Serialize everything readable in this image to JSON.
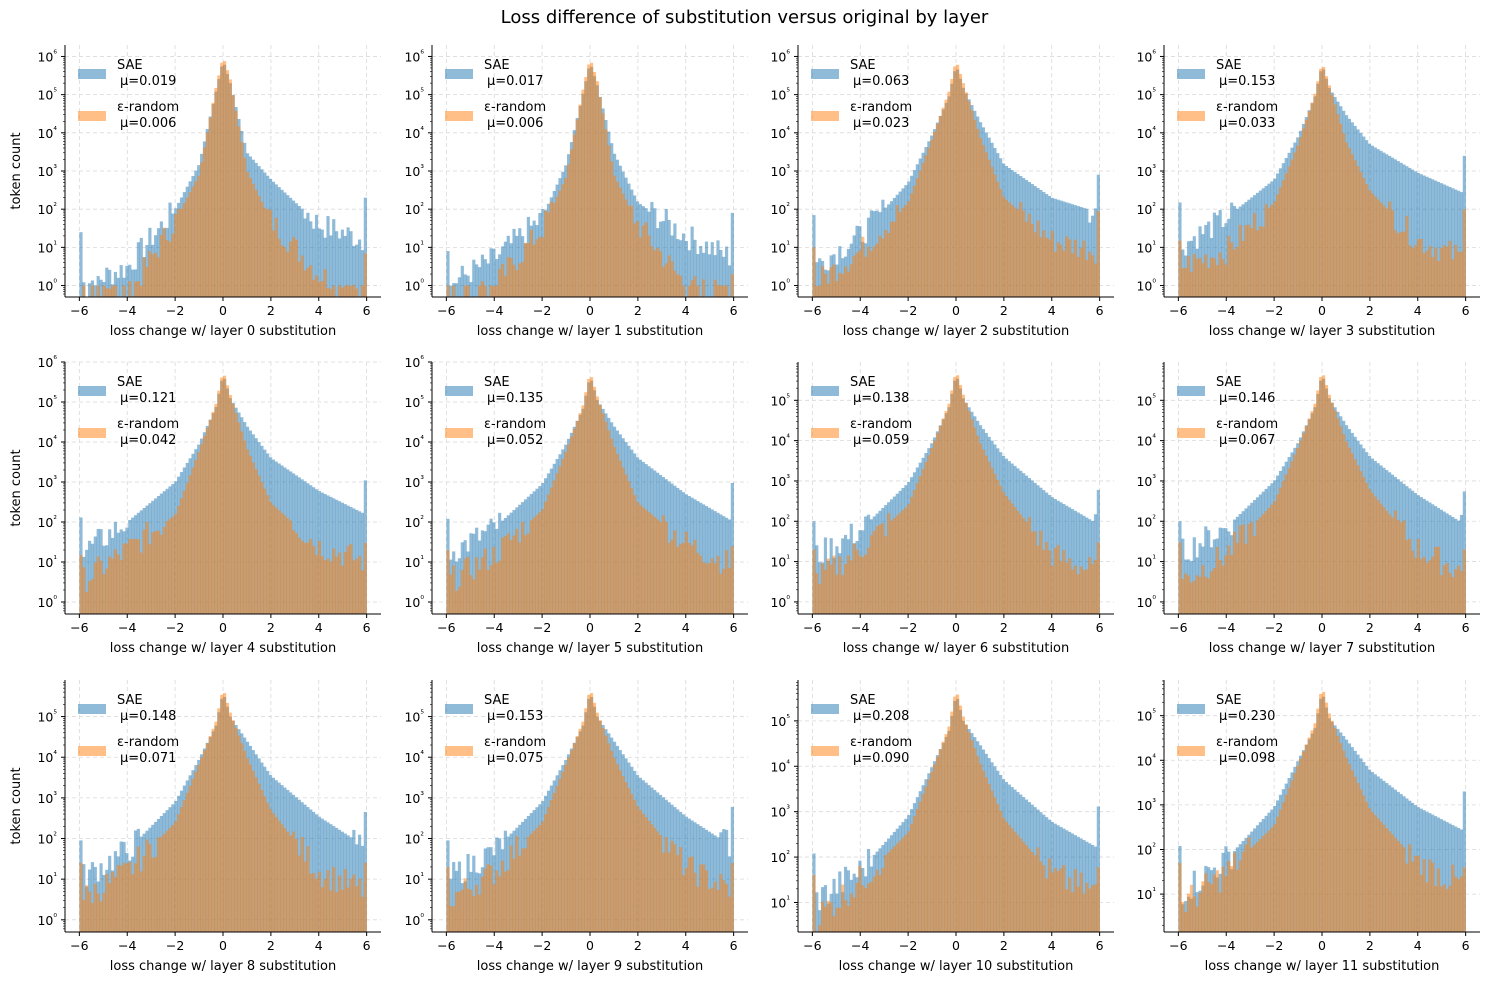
{
  "figure": {
    "title": "Loss difference of substitution versus original by layer"
  },
  "chart_data": {
    "type": "bar",
    "subtype": "overlaid-histogram-grid",
    "title": "Loss difference of substitution versus original by layer",
    "layout": {
      "rows": 3,
      "cols": 4
    },
    "ylabel": "token count",
    "yscale": "log",
    "grid": true,
    "grid_style": "dashed",
    "legend_position": "top-left",
    "bins": {
      "min": -6,
      "max": 6,
      "count": 100
    },
    "xlim": [
      -6.6,
      6.6
    ],
    "xticks": [
      -6,
      -4,
      -2,
      0,
      2,
      4,
      6
    ],
    "xtick_labels": [
      "−6",
      "−4",
      "−2",
      "0",
      "2",
      "4",
      "6"
    ],
    "series_styles": [
      {
        "name": "SAE",
        "color": "#1f77b4",
        "alpha": 0.5
      },
      {
        "name": "ε-random",
        "color": "#ff7f0e",
        "alpha": 0.5
      }
    ],
    "panels": [
      {
        "layer": 0,
        "xlabel": "loss change w/ layer 0 substitution",
        "ylim_exp": [
          -0.3,
          6.3
        ],
        "ytick_exps": [
          0,
          1,
          2,
          3,
          4,
          5,
          6
        ],
        "sae": {
          "label": "SAE",
          "mu": "μ=0.019",
          "peak": 800000,
          "p1": 3000,
          "n1": 1500,
          "p2": 600,
          "n2": 100,
          "p4": 40,
          "n4": 3,
          "p6": 15,
          "n6": 1,
          "edge_lo": 25,
          "edge_hi": 200
        },
        "rnd": {
          "label": "ε-random",
          "mu": "μ=0.006",
          "peak": 1000000,
          "p1": 1000,
          "n1": 800,
          "p2": 50,
          "n2": 50,
          "p4": 2,
          "n4": 0.5,
          "p6": 0.5,
          "n6": 0.3,
          "edge_lo": 0.5,
          "edge_hi": 7
        }
      },
      {
        "layer": 1,
        "xlabel": "loss change w/ layer 1 substitution",
        "ylim_exp": [
          -0.3,
          6.3
        ],
        "ytick_exps": [
          0,
          1,
          2,
          3,
          4,
          5,
          6
        ],
        "sae": {
          "label": "SAE",
          "mu": "μ=0.017",
          "peak": 700000,
          "p1": 3000,
          "n1": 1500,
          "p2": 150,
          "n2": 60,
          "p4": 20,
          "n4": 5,
          "p6": 5,
          "n6": 1,
          "edge_lo": 8,
          "edge_hi": 80
        },
        "rnd": {
          "label": "ε-random",
          "mu": "μ=0.006",
          "peak": 900000,
          "p1": 800,
          "n1": 700,
          "p2": 40,
          "n2": 30,
          "p4": 1,
          "n4": 1,
          "p6": 0.5,
          "n6": 0.3,
          "edge_lo": 1,
          "edge_hi": 2
        }
      },
      {
        "layer": 2,
        "xlabel": "loss change w/ layer 2 substitution",
        "ylim_exp": [
          -0.3,
          6.3
        ],
        "ytick_exps": [
          0,
          1,
          2,
          3,
          4,
          5,
          6
        ],
        "sae": {
          "label": "SAE",
          "mu": "μ=0.063",
          "peak": 600000,
          "p1": 20000,
          "n1": 9000,
          "p2": 1500,
          "n2": 500,
          "p4": 200,
          "n4": 20,
          "p6": 80,
          "n6": 3,
          "edge_lo": 70,
          "edge_hi": 800
        },
        "rnd": {
          "label": "ε-random",
          "mu": "μ=0.023",
          "peak": 800000,
          "p1": 8000,
          "n1": 7000,
          "p2": 200,
          "n2": 150,
          "p4": 15,
          "n4": 8,
          "p6": 8,
          "n6": 1,
          "edge_lo": 10,
          "edge_hi": 90
        }
      },
      {
        "layer": 3,
        "xlabel": "loss change w/ layer 3 substitution",
        "ylim_exp": [
          -0.3,
          6.3
        ],
        "ytick_exps": [
          0,
          1,
          2,
          3,
          4,
          5,
          6
        ],
        "sae": {
          "label": "SAE",
          "mu": "μ=0.153",
          "peak": 600000,
          "p1": 30000,
          "n1": 8000,
          "p2": 5000,
          "n2": 600,
          "p4": 900,
          "n4": 60,
          "p6": 250,
          "n6": 10,
          "edge_lo": 150,
          "edge_hi": 2500
        },
        "rnd": {
          "label": "ε-random",
          "mu": "μ=0.033",
          "peak": 700000,
          "p1": 6000,
          "n1": 5000,
          "p2": 300,
          "n2": 150,
          "p4": 15,
          "n4": 8,
          "p6": 5,
          "n6": 3,
          "edge_lo": 15,
          "edge_hi": 100
        }
      },
      {
        "layer": 4,
        "xlabel": "loss change w/ layer 4 substitution",
        "ylim_exp": [
          -0.3,
          6.0
        ],
        "ytick_exps": [
          0,
          1,
          2,
          3,
          4,
          5,
          6
        ],
        "sae": {
          "label": "SAE",
          "mu": "μ=0.121",
          "peak": 500000,
          "p1": 25000,
          "n1": 9000,
          "p2": 4000,
          "n2": 1000,
          "p4": 600,
          "n4": 100,
          "p6": 150,
          "n6": 15,
          "edge_lo": 130,
          "edge_hi": 1100
        },
        "rnd": {
          "label": "ε-random",
          "mu": "μ=0.042",
          "peak": 600000,
          "p1": 7000,
          "n1": 6000,
          "p2": 300,
          "n2": 150,
          "p4": 25,
          "n4": 20,
          "p6": 10,
          "n6": 3,
          "edge_lo": 15,
          "edge_hi": 30
        }
      },
      {
        "layer": 5,
        "xlabel": "loss change w/ layer 5 substitution",
        "ylim_exp": [
          -0.3,
          6.0
        ],
        "ytick_exps": [
          0,
          1,
          2,
          3,
          4,
          5,
          6
        ],
        "sae": {
          "label": "SAE",
          "mu": "μ=0.135",
          "peak": 450000,
          "p1": 25000,
          "n1": 9000,
          "p2": 4000,
          "n2": 900,
          "p4": 500,
          "n4": 70,
          "p6": 100,
          "n6": 15,
          "edge_lo": 120,
          "edge_hi": 950
        },
        "rnd": {
          "label": "ε-random",
          "mu": "μ=0.052",
          "peak": 550000,
          "p1": 8000,
          "n1": 6000,
          "p2": 300,
          "n2": 200,
          "p4": 30,
          "n4": 15,
          "p6": 8,
          "n6": 3,
          "edge_lo": 20,
          "edge_hi": 25
        }
      },
      {
        "layer": 6,
        "xlabel": "loss change w/ layer 6 substitution",
        "ylim_exp": [
          -0.3,
          5.95
        ],
        "ytick_exps": [
          0,
          1,
          2,
          3,
          4,
          5
        ],
        "sae": {
          "label": "SAE",
          "mu": "μ=0.138",
          "peak": 450000,
          "p1": 25000,
          "n1": 9000,
          "p2": 4000,
          "n2": 900,
          "p4": 400,
          "n4": 60,
          "p6": 80,
          "n6": 12,
          "edge_lo": 100,
          "edge_hi": 600
        },
        "rnd": {
          "label": "ε-random",
          "mu": "μ=0.059",
          "peak": 550000,
          "p1": 9000,
          "n1": 7000,
          "p2": 500,
          "n2": 250,
          "p4": 15,
          "n4": 20,
          "p6": 5,
          "n6": 3,
          "edge_lo": 20,
          "edge_hi": 30
        }
      },
      {
        "layer": 7,
        "xlabel": "loss change w/ layer 7 substitution",
        "ylim_exp": [
          -0.3,
          5.95
        ],
        "ytick_exps": [
          0,
          1,
          2,
          3,
          4,
          5
        ],
        "sae": {
          "label": "SAE",
          "mu": "μ=0.146",
          "peak": 450000,
          "p1": 25000,
          "n1": 9000,
          "p2": 4000,
          "n2": 1000,
          "p4": 450,
          "n4": 70,
          "p6": 80,
          "n6": 15,
          "edge_lo": 100,
          "edge_hi": 550
        },
        "rnd": {
          "label": "ε-random",
          "mu": "μ=0.067",
          "peak": 550000,
          "p1": 10000,
          "n1": 7000,
          "p2": 600,
          "n2": 300,
          "p4": 20,
          "n4": 15,
          "p6": 5,
          "n6": 3,
          "edge_lo": 30,
          "edge_hi": 20
        }
      },
      {
        "layer": 8,
        "xlabel": "loss change w/ layer 8 substitution",
        "ylim_exp": [
          -0.3,
          5.9
        ],
        "ytick_exps": [
          0,
          1,
          2,
          3,
          4,
          5
        ],
        "sae": {
          "label": "SAE",
          "mu": "μ=0.148",
          "peak": 400000,
          "p1": 25000,
          "n1": 9000,
          "p2": 3500,
          "n2": 800,
          "p4": 350,
          "n4": 50,
          "p6": 60,
          "n6": 10,
          "edge_lo": 90,
          "edge_hi": 450
        },
        "rnd": {
          "label": "ε-random",
          "mu": "μ=0.071",
          "peak": 500000,
          "p1": 10000,
          "n1": 7000,
          "p2": 500,
          "n2": 250,
          "p4": 15,
          "n4": 15,
          "p6": 5,
          "n6": 3,
          "edge_lo": 25,
          "edge_hi": 25
        }
      },
      {
        "layer": 9,
        "xlabel": "loss change w/ layer 9 substitution",
        "ylim_exp": [
          -0.3,
          5.9
        ],
        "ytick_exps": [
          0,
          1,
          2,
          3,
          4,
          5
        ],
        "sae": {
          "label": "SAE",
          "mu": "μ=0.153",
          "peak": 400000,
          "p1": 25000,
          "n1": 9000,
          "p2": 3500,
          "n2": 800,
          "p4": 350,
          "n4": 50,
          "p6": 60,
          "n6": 10,
          "edge_lo": 90,
          "edge_hi": 600
        },
        "rnd": {
          "label": "ε-random",
          "mu": "μ=0.075",
          "peak": 500000,
          "p1": 10000,
          "n1": 7000,
          "p2": 600,
          "n2": 250,
          "p4": 20,
          "n4": 15,
          "p6": 5,
          "n6": 3,
          "edge_lo": 20,
          "edge_hi": 25
        }
      },
      {
        "layer": 10,
        "xlabel": "loss change w/ layer 10 substitution",
        "ylim_exp": [
          0.35,
          5.9
        ],
        "ytick_exps": [
          1,
          2,
          3,
          4,
          5
        ],
        "sae": {
          "label": "SAE",
          "mu": "μ=0.208",
          "peak": 400000,
          "p1": 30000,
          "n1": 10000,
          "p2": 5000,
          "n2": 800,
          "p4": 600,
          "n4": 50,
          "p6": 150,
          "n6": 10,
          "edge_lo": 120,
          "edge_hi": 1300
        },
        "rnd": {
          "label": "ε-random",
          "mu": "μ=0.090",
          "peak": 500000,
          "p1": 12000,
          "n1": 8000,
          "p2": 700,
          "n2": 350,
          "p4": 40,
          "n4": 30,
          "p6": 15,
          "n6": 4,
          "edge_lo": 40,
          "edge_hi": 60
        }
      },
      {
        "layer": 11,
        "xlabel": "loss change w/ layer 11 substitution",
        "ylim_exp": [
          0.15,
          5.8
        ],
        "ytick_exps": [
          1,
          2,
          3,
          4,
          5
        ],
        "sae": {
          "label": "SAE",
          "mu": "μ=0.230",
          "peak": 350000,
          "p1": 30000,
          "n1": 10000,
          "p2": 6000,
          "n2": 900,
          "p4": 900,
          "n4": 60,
          "p6": 250,
          "n6": 10,
          "edge_lo": 120,
          "edge_hi": 2000
        },
        "rnd": {
          "label": "ε-random",
          "mu": "μ=0.098",
          "peak": 450000,
          "p1": 12000,
          "n1": 8000,
          "p2": 800,
          "n2": 350,
          "p4": 50,
          "n4": 30,
          "p6": 15,
          "n6": 5,
          "edge_lo": 50,
          "edge_hi": 40
        }
      }
    ]
  }
}
